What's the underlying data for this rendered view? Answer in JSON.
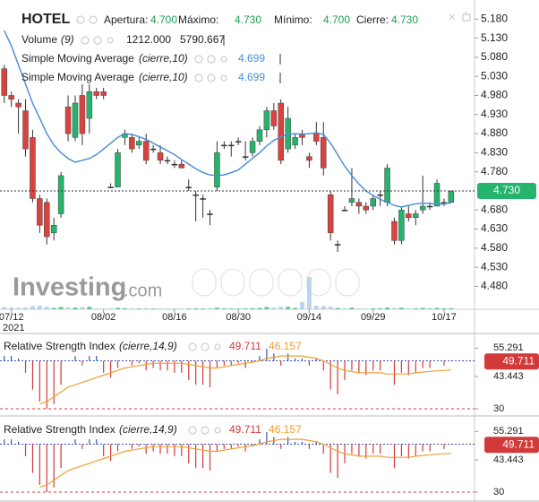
{
  "chart_data": [
    {
      "type": "candlestick",
      "title": "HOTEL",
      "stats": [
        {
          "name": "Apertura:",
          "value": 4.7,
          "label": "4.700"
        },
        {
          "name": "Máximo:",
          "value": 4.73,
          "label": "4.730"
        },
        {
          "name": "Mínimo:",
          "value": 4.7,
          "label": "4.700"
        },
        {
          "name": "Cierre:",
          "value": 4.73,
          "label": "4.730"
        }
      ],
      "watermark": [
        "Investing",
        ".com"
      ],
      "x": [
        0,
        1,
        2,
        3,
        4,
        5,
        6,
        7,
        8,
        9,
        10,
        11,
        12,
        13,
        14,
        15,
        16,
        17,
        18,
        19,
        20,
        21,
        22,
        23,
        24,
        25,
        26,
        27,
        28,
        29,
        30,
        31,
        32,
        33,
        34,
        35,
        36,
        37,
        38,
        39,
        40,
        41,
        42,
        43,
        44,
        45,
        46,
        47,
        48,
        49,
        50,
        51,
        52,
        53,
        54,
        55,
        56,
        57,
        58,
        59,
        60,
        61,
        62,
        63
      ],
      "xlim": [
        -0.6,
        66.3
      ],
      "xticks": [
        {
          "value": 1,
          "label": "07/12"
        },
        {
          "value": 14,
          "label": "08/02"
        },
        {
          "value": 24,
          "label": "08/16"
        },
        {
          "value": 33,
          "label": "08/30"
        },
        {
          "value": 43,
          "label": "09/14"
        },
        {
          "value": 52,
          "label": "09/29"
        },
        {
          "value": 62,
          "label": "10/17"
        }
      ],
      "x_sublabel": "2021",
      "open": [
        5.05,
        4.98,
        4.96,
        4.94,
        4.87,
        4.71,
        4.7,
        4.62,
        4.67,
        4.95,
        4.87,
        4.98,
        4.92,
        4.99,
        4.99,
        4.74,
        4.74,
        4.87,
        4.87,
        4.85,
        4.86,
        4.84,
        4.83,
        4.81,
        4.8,
        4.8,
        4.74,
        4.72,
        4.71,
        4.67,
        4.74,
        4.85,
        4.85,
        4.86,
        4.82,
        4.83,
        4.86,
        4.89,
        4.94,
        4.96,
        4.84,
        4.85,
        4.88,
        4.82,
        4.88,
        4.87,
        4.72,
        4.59,
        4.68,
        4.7,
        4.7,
        4.69,
        4.69,
        4.72,
        4.7,
        4.65,
        4.6,
        4.67,
        4.66,
        4.68,
        4.69,
        4.69,
        4.7,
        4.7
      ],
      "high": [
        5.06,
        4.99,
        4.97,
        4.97,
        4.89,
        4.72,
        4.71,
        4.66,
        4.78,
        4.98,
        4.98,
        5.01,
        5.01,
        5.0,
        5.0,
        4.75,
        4.84,
        4.89,
        4.88,
        4.87,
        4.88,
        4.85,
        4.85,
        4.82,
        4.81,
        4.81,
        4.76,
        4.73,
        4.72,
        4.68,
        4.86,
        4.86,
        4.86,
        4.87,
        4.86,
        4.87,
        4.9,
        4.95,
        4.96,
        4.97,
        4.95,
        4.88,
        4.89,
        4.83,
        4.91,
        4.91,
        4.73,
        4.6,
        4.69,
        4.79,
        4.71,
        4.7,
        4.72,
        4.73,
        4.8,
        4.66,
        4.69,
        4.69,
        4.68,
        4.77,
        4.7,
        4.76,
        4.71,
        4.73
      ],
      "low": [
        4.96,
        4.95,
        4.88,
        4.82,
        4.7,
        4.62,
        4.59,
        4.6,
        4.66,
        4.86,
        4.86,
        4.85,
        4.88,
        4.97,
        4.97,
        4.74,
        4.74,
        4.85,
        4.83,
        4.84,
        4.8,
        4.83,
        4.8,
        4.8,
        4.79,
        4.79,
        4.73,
        4.65,
        4.66,
        4.64,
        4.73,
        4.84,
        4.82,
        4.85,
        4.81,
        4.82,
        4.85,
        4.87,
        4.89,
        4.8,
        4.83,
        4.84,
        4.85,
        4.79,
        4.85,
        4.77,
        4.6,
        4.57,
        4.68,
        4.69,
        4.67,
        4.67,
        4.68,
        4.69,
        4.69,
        4.59,
        4.59,
        4.65,
        4.64,
        4.67,
        4.68,
        4.69,
        4.69,
        4.7
      ],
      "close": [
        4.98,
        4.97,
        4.95,
        4.84,
        4.71,
        4.64,
        4.61,
        4.64,
        4.77,
        4.88,
        4.96,
        4.88,
        4.99,
        4.98,
        4.98,
        4.74,
        4.83,
        4.88,
        4.84,
        4.86,
        4.81,
        4.84,
        4.81,
        4.81,
        4.8,
        4.79,
        4.74,
        4.72,
        4.71,
        4.67,
        4.83,
        4.85,
        4.85,
        4.86,
        4.82,
        4.86,
        4.89,
        4.94,
        4.9,
        4.81,
        4.92,
        4.87,
        4.87,
        4.81,
        4.86,
        4.79,
        4.62,
        4.59,
        4.68,
        4.71,
        4.69,
        4.68,
        4.71,
        4.72,
        4.79,
        4.6,
        4.68,
        4.66,
        4.67,
        4.69,
        4.69,
        4.75,
        4.7,
        4.73
      ],
      "up_color": "#26b36b",
      "down_color": "#d9433f",
      "ylim": [
        4.42,
        5.23
      ],
      "yticks": [
        {
          "value": 5.18,
          "label": "5.180"
        },
        {
          "value": 5.13,
          "label": "5.130"
        },
        {
          "value": 5.08,
          "label": "5.080"
        },
        {
          "value": 5.03,
          "label": "5.030"
        },
        {
          "value": 4.98,
          "label": "4.980"
        },
        {
          "value": 4.93,
          "label": "4.930"
        },
        {
          "value": 4.88,
          "label": "4.880"
        },
        {
          "value": 4.83,
          "label": "4.830"
        },
        {
          "value": 4.78,
          "label": "4.780"
        },
        {
          "value": 4.68,
          "label": "4.680"
        },
        {
          "value": 4.63,
          "label": "4.630"
        },
        {
          "value": 4.58,
          "label": "4.580"
        },
        {
          "value": 4.53,
          "label": "4.530"
        },
        {
          "value": 4.48,
          "label": "4.480"
        }
      ],
      "volume": {
        "name": "Volume",
        "params": "(9)",
        "ylim": [
          0,
          40000
        ],
        "values": [
          2500,
          1800,
          1500,
          2000,
          3500,
          4000,
          3000,
          1500,
          2500,
          2200,
          2000,
          2500,
          2800,
          800,
          600,
          400,
          1500,
          1200,
          1000,
          900,
          1200,
          800,
          900,
          600,
          500,
          700,
          800,
          1000,
          900,
          700,
          1800,
          1000,
          800,
          700,
          900,
          1200,
          1500,
          2500,
          2000,
          3000,
          2800,
          1500,
          8000,
          36000,
          4000,
          3500,
          3000,
          1500,
          500,
          1800,
          1000,
          800,
          900,
          1000,
          2000,
          1500,
          1800,
          1000,
          900,
          1500,
          800,
          1500,
          1000,
          1212
        ],
        "last": {
          "value": 1212,
          "label": "1212.000"
        },
        "average": {
          "value": 5790.667,
          "label": "5790.667"
        }
      },
      "series": [
        {
          "name": "Simple Moving Average",
          "params": "(cierre,10)",
          "color": "#4a8fd8",
          "values": [
            5.15,
            5.11,
            5.06,
            5.01,
            4.96,
            4.92,
            4.88,
            4.85,
            4.83,
            4.815,
            4.805,
            4.81,
            4.815,
            4.825,
            4.84,
            4.855,
            4.87,
            4.88,
            4.878,
            4.872,
            4.865,
            4.855,
            4.845,
            4.835,
            4.825,
            4.812,
            4.8,
            4.788,
            4.778,
            4.772,
            4.77,
            4.772,
            4.778,
            4.785,
            4.8,
            4.815,
            4.83,
            4.848,
            4.862,
            4.872,
            4.878,
            4.88,
            4.878,
            4.88,
            4.882,
            4.878,
            4.855,
            4.825,
            4.795,
            4.77,
            4.748,
            4.73,
            4.718,
            4.708,
            4.7,
            4.692,
            4.688,
            4.692,
            4.696,
            4.698,
            4.697,
            4.695,
            4.696,
            4.699
          ]
        },
        {
          "name": "Simple Moving Average",
          "params": "(cierre,10)",
          "color": "#4a8fd8",
          "values": [
            5.15,
            5.11,
            5.06,
            5.01,
            4.96,
            4.92,
            4.88,
            4.85,
            4.83,
            4.815,
            4.805,
            4.81,
            4.815,
            4.825,
            4.84,
            4.855,
            4.87,
            4.88,
            4.878,
            4.872,
            4.865,
            4.855,
            4.845,
            4.835,
            4.825,
            4.812,
            4.8,
            4.788,
            4.778,
            4.772,
            4.77,
            4.772,
            4.778,
            4.785,
            4.8,
            4.815,
            4.83,
            4.848,
            4.862,
            4.872,
            4.878,
            4.88,
            4.878,
            4.88,
            4.882,
            4.878,
            4.855,
            4.825,
            4.795,
            4.77,
            4.748,
            4.73,
            4.718,
            4.708,
            4.7,
            4.692,
            4.688,
            4.692,
            4.696,
            4.698,
            4.697,
            4.695,
            4.696,
            4.699
          ]
        }
      ]
    },
    {
      "type": "rsi",
      "title": "Relative Strength Index",
      "params": "(cierre,14,9)",
      "ylim": [
        27,
        61.4
      ],
      "yticks": [
        55.291,
        43.443,
        30
      ],
      "levels": [
        50,
        30
      ],
      "up_color": "#3552b8",
      "series": [
        {
          "name": "RSI",
          "color": "#d23a3a",
          "values": [
            52,
            52,
            51,
            45,
            38,
            33,
            30,
            32,
            40,
            50,
            52,
            48,
            52,
            52,
            45,
            43,
            47,
            50,
            48,
            49,
            46,
            47,
            46,
            46,
            45,
            45,
            42,
            40,
            40,
            39,
            47,
            48,
            48,
            49,
            47,
            49,
            52,
            55,
            53,
            48,
            53,
            51,
            51,
            48,
            51,
            46,
            38,
            36,
            42,
            46,
            45,
            44,
            46,
            46,
            50,
            40,
            45,
            44,
            45,
            47,
            47,
            50,
            48,
            49.711
          ]
        },
        {
          "name": "Signal",
          "color": "#f0a030",
          "values": [
            null,
            null,
            null,
            null,
            null,
            32,
            33,
            35,
            37,
            39,
            40,
            41,
            42,
            43,
            44,
            45,
            46,
            47,
            47.5,
            48,
            48.5,
            49,
            49,
            49,
            49,
            49,
            48.5,
            48,
            47.5,
            47,
            47,
            47.5,
            48,
            48.5,
            49,
            49.5,
            50,
            51,
            51.5,
            52,
            52,
            52,
            52,
            51.5,
            51,
            50,
            48.5,
            47,
            46,
            45.5,
            45,
            45,
            45,
            45,
            44.5,
            44.5,
            44.5,
            44.5,
            45,
            45.3,
            45.6,
            45.8,
            46,
            46.157
          ]
        }
      ]
    },
    {
      "type": "rsi",
      "title": "Relative Strength Index",
      "params": "(cierre,14,9)",
      "ylim": [
        27,
        61.4
      ],
      "yticks": [
        55.291,
        43.443,
        30
      ],
      "levels": [
        50,
        30
      ],
      "up_color": "#3552b8",
      "series": [
        {
          "name": "RSI",
          "color": "#d23a3a",
          "values": [
            52,
            52,
            51,
            45,
            38,
            33,
            30,
            32,
            40,
            50,
            52,
            48,
            52,
            52,
            45,
            43,
            47,
            50,
            48,
            49,
            46,
            47,
            46,
            46,
            45,
            45,
            42,
            40,
            40,
            39,
            47,
            48,
            48,
            49,
            47,
            49,
            52,
            55,
            53,
            48,
            53,
            51,
            51,
            48,
            51,
            46,
            38,
            36,
            42,
            46,
            45,
            44,
            46,
            46,
            50,
            40,
            45,
            44,
            45,
            47,
            47,
            50,
            48,
            49.711
          ]
        },
        {
          "name": "Signal",
          "color": "#f0a030",
          "values": [
            null,
            null,
            null,
            null,
            null,
            32,
            33,
            35,
            37,
            39,
            40,
            41,
            42,
            43,
            44,
            45,
            46,
            47,
            47.5,
            48,
            48.5,
            49,
            49,
            49,
            49,
            49,
            48.5,
            48,
            47.5,
            47,
            47,
            47.5,
            48,
            48.5,
            49,
            49.5,
            50,
            51,
            51.5,
            52,
            52,
            52,
            52,
            51.5,
            51,
            50,
            48.5,
            47,
            46,
            45.5,
            45,
            45,
            45,
            45,
            44.5,
            44.5,
            44.5,
            44.5,
            45,
            45.3,
            45.6,
            45.8,
            46,
            46.157
          ]
        }
      ]
    }
  ]
}
